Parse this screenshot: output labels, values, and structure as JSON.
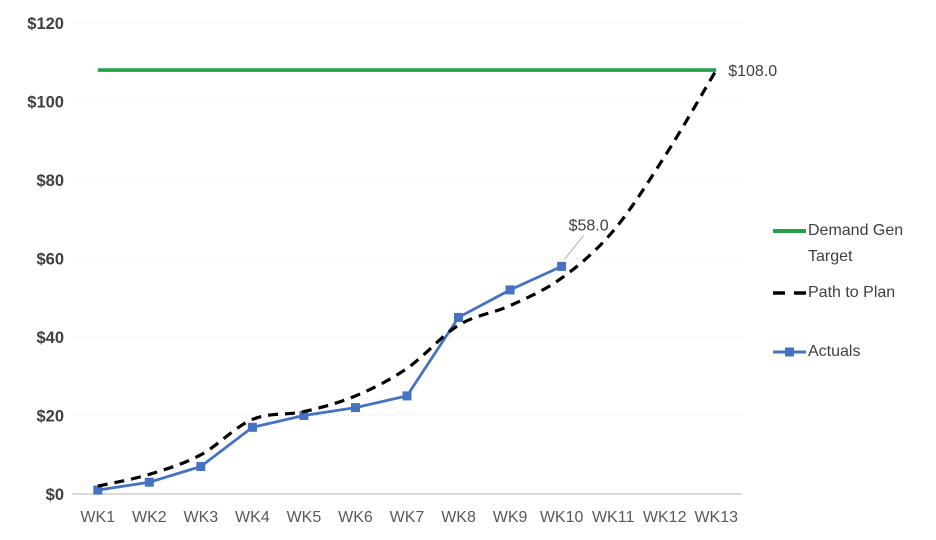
{
  "chart_data": {
    "type": "line",
    "title": "",
    "categories": [
      "WK1",
      "WK2",
      "WK3",
      "WK4",
      "WK5",
      "WK6",
      "WK7",
      "WK8",
      "WK9",
      "WK10",
      "WK11",
      "WK12",
      "WK13"
    ],
    "series": [
      {
        "name": "Demand Gen Target",
        "color": "#22A24D",
        "line_style": "solid",
        "marker": "none",
        "values": [
          108,
          108,
          108,
          108,
          108,
          108,
          108,
          108,
          108,
          108,
          108,
          108,
          108
        ]
      },
      {
        "name": "Path to Plan",
        "color": "#000000",
        "line_style": "dashed",
        "marker": "none",
        "values": [
          2,
          5,
          10,
          19,
          21,
          25,
          32,
          43,
          48,
          55,
          67,
          86,
          108
        ]
      },
      {
        "name": "Actuals",
        "color": "#4472C4",
        "line_style": "solid",
        "marker": "square",
        "values": [
          1,
          3,
          7,
          17,
          20,
          22,
          25,
          45,
          52,
          58
        ]
      }
    ],
    "ylim": [
      0,
      120
    ],
    "y_ticks": [
      "$0",
      "$20",
      "$40",
      "$60",
      "$80",
      "$100",
      "$120"
    ],
    "xlabel": "",
    "ylabel": "",
    "grid": "horizontal dotted",
    "legend_position": "right",
    "annotations": [
      {
        "text": "$108.0",
        "series": "Path to Plan",
        "index": 12,
        "placement": "right"
      },
      {
        "text": "$58.0",
        "series": "Actuals",
        "index": 9,
        "placement": "above-leader"
      }
    ]
  },
  "legend": {
    "items": [
      {
        "label": "Demand Gen Target",
        "swatch": "green-solid-line"
      },
      {
        "label": "Path to Plan",
        "swatch": "black-dashed-line"
      },
      {
        "label": "Actuals",
        "swatch": "blue-line-square-marker"
      }
    ]
  },
  "colors": {
    "target_green": "#22A24D",
    "actuals_blue": "#4472C4",
    "path_black": "#000000",
    "gridline": "#e2e2e2",
    "axis_line": "#c3c3c3",
    "y_tick_text": "#3f3f3f",
    "x_tick_text": "#595959",
    "annotation_text": "#404040",
    "leader_line": "#b0b0b0"
  }
}
